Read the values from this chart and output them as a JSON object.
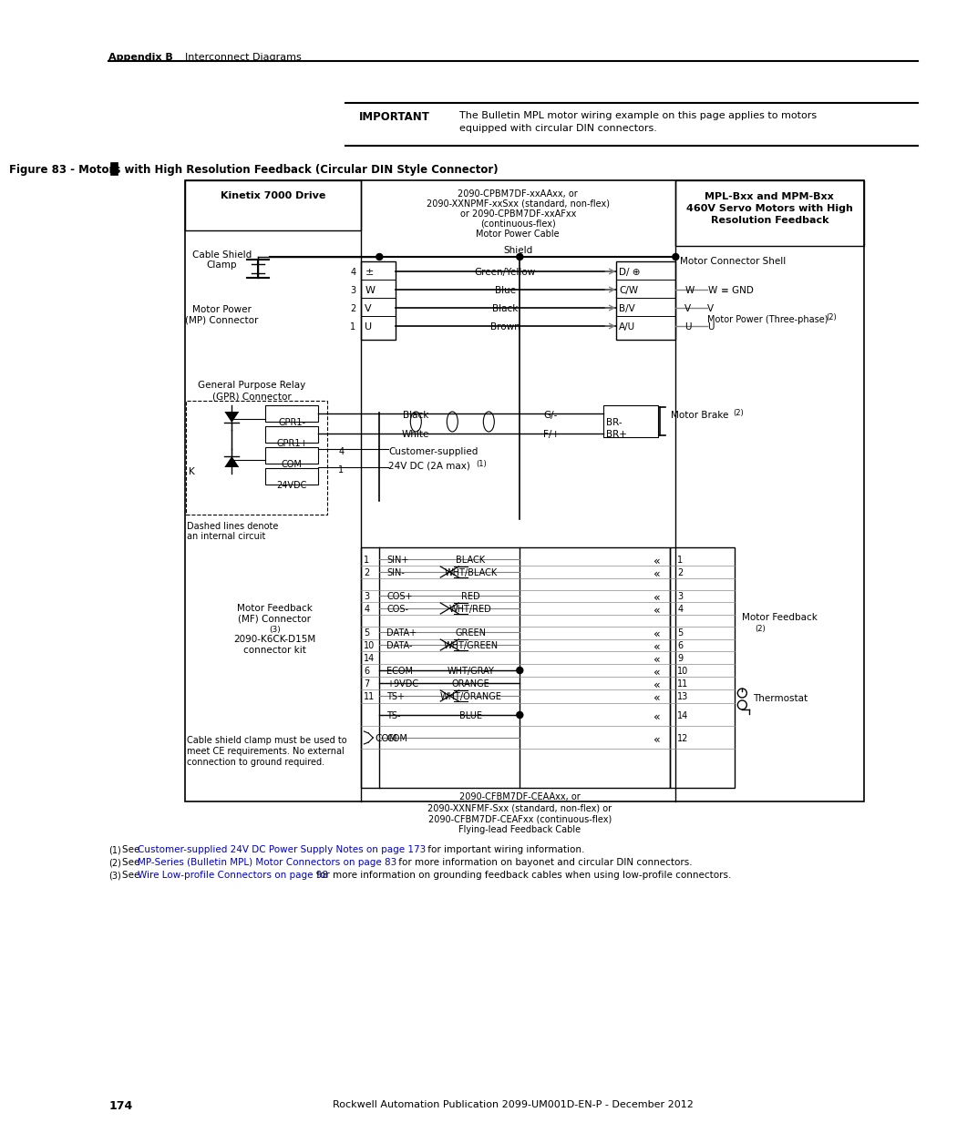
{
  "page_header_bold": "Appendix B",
  "page_header_normal": "Interconnect Diagrams",
  "important_label": "IMPORTANT",
  "important_text_line1": "The Bulletin MPL motor wiring example on this page applies to motors",
  "important_text_line2": "equipped with circular DIN connectors.",
  "figure_title": "Figure 83 - Motors with High Resolution Feedback (Circular DIN Style Connector)",
  "page_number": "174",
  "footer_text": "Rockwell Automation Publication 2099-UM001D-EN-P - December 2012",
  "bg_color": "#ffffff"
}
